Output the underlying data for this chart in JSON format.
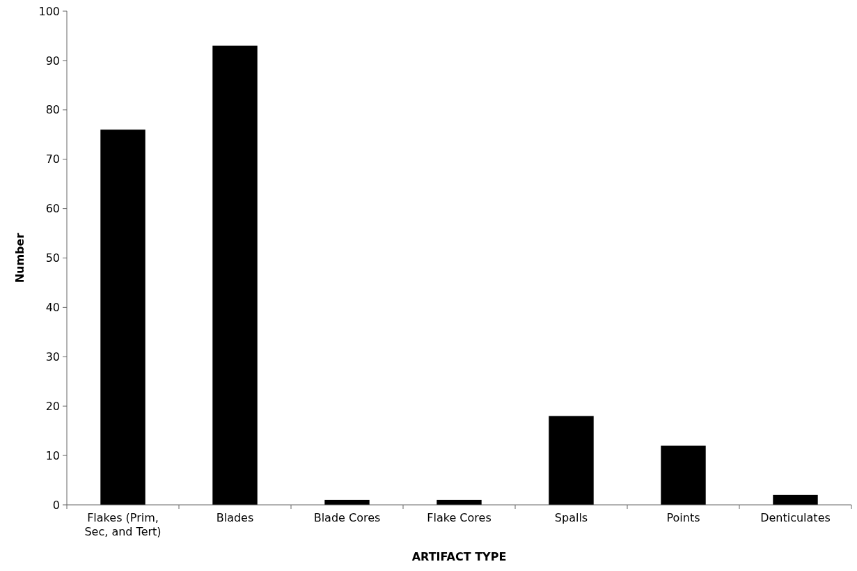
{
  "chart_data": {
    "type": "bar",
    "xlabel": "ARTIFACT TYPE",
    "ylabel": "Number",
    "categories": [
      "Flakes (Prim, Sec, and Tert)",
      "Blades",
      "Blade Cores",
      "Flake Cores",
      "Spalls",
      "Points",
      "Denticulates"
    ],
    "values": [
      76,
      93,
      1,
      1,
      18,
      12,
      2
    ],
    "color": "#000000",
    "ylim": [
      0,
      100
    ],
    "yticks": [
      0,
      10,
      20,
      30,
      40,
      50,
      60,
      70,
      80,
      90,
      100
    ],
    "grid": false
  }
}
